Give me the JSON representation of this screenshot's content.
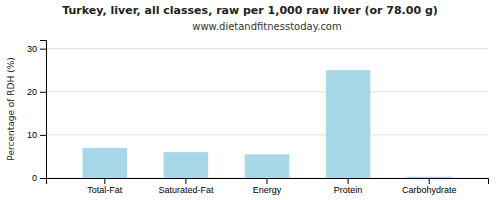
{
  "chart_data": {
    "type": "bar",
    "title": "Turkey, liver, all classes, raw per 1,000 raw liver (or 78.00 g)",
    "subtitle": "www.dietandfitnesstoday.com",
    "categories": [
      "Total-Fat",
      "Saturated-Fat",
      "Energy",
      "Protein",
      "Carbohydrate"
    ],
    "values": [
      7.0,
      6.0,
      5.5,
      25.0,
      0.3
    ],
    "color": "#a8d8e8",
    "ylabel": "Percentage of RDH (%)",
    "ylim": [
      0,
      32
    ],
    "yticks": [
      0,
      10,
      20,
      30
    ],
    "grid": true
  }
}
